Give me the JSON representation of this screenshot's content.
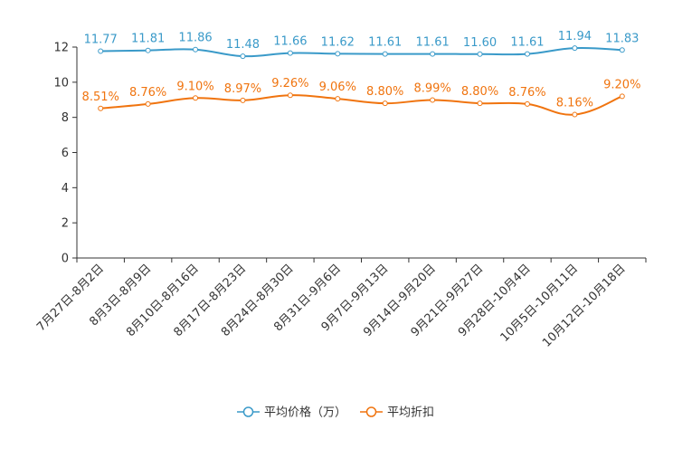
{
  "chart_data": {
    "type": "line",
    "title": "",
    "xlabel": "",
    "ylabel": "",
    "ylim": [
      0,
      12
    ],
    "yticks": [
      0,
      2,
      4,
      6,
      8,
      10,
      12
    ],
    "categories": [
      "7月27日-8月2日",
      "8月3日-8月9日",
      "8月10日-8月16日",
      "8月17日-8月23日",
      "8月24日-8月30日",
      "8月31日-9月6日",
      "9月7日-9月13日",
      "9月14日-9月20日",
      "9月21日-9月27日",
      "9月28日-10月4日",
      "10月5日-10月11日",
      "10月12日-10月18日"
    ],
    "series": [
      {
        "name": "平均价格（万）",
        "color": "#3a9ac9",
        "values": [
          11.77,
          11.81,
          11.86,
          11.48,
          11.66,
          11.62,
          11.61,
          11.61,
          11.6,
          11.61,
          11.94,
          11.83
        ],
        "labels": [
          "11.77",
          "11.81",
          "11.86",
          "11.48",
          "11.66",
          "11.62",
          "11.61",
          "11.61",
          "11.60",
          "11.61",
          "11.94",
          "11.83"
        ]
      },
      {
        "name": "平均折扣",
        "color": "#f0740f",
        "values": [
          8.51,
          8.76,
          9.1,
          8.97,
          9.26,
          9.06,
          8.8,
          8.99,
          8.8,
          8.76,
          8.16,
          9.2
        ],
        "labels": [
          "8.51%",
          "8.76%",
          "9.10%",
          "8.97%",
          "9.26%",
          "9.06%",
          "8.80%",
          "8.99%",
          "8.80%",
          "8.76%",
          "8.16%",
          "9.20%"
        ]
      }
    ],
    "legend": {
      "position": "bottom",
      "entries": [
        "平均价格（万）",
        "平均折扣"
      ]
    },
    "grid": false
  }
}
